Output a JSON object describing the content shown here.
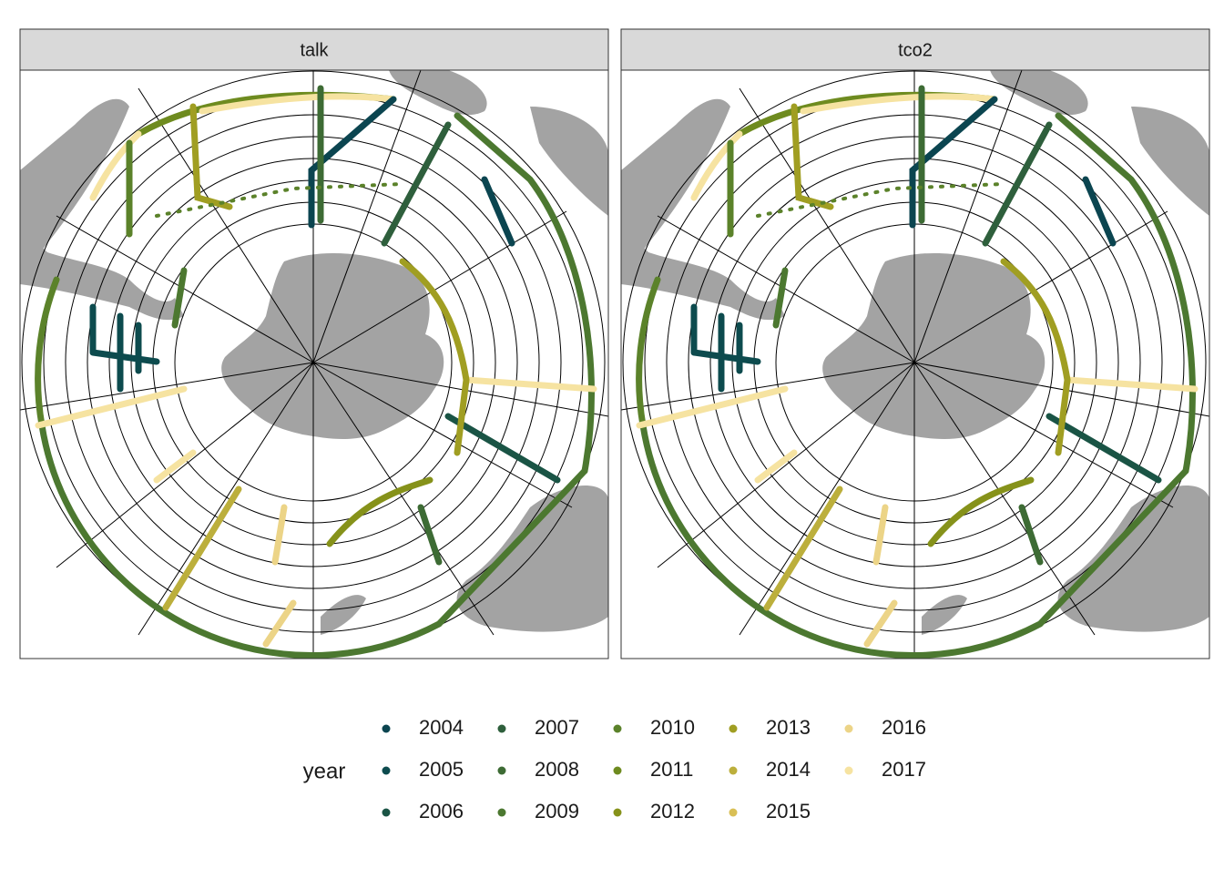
{
  "panels": [
    {
      "title": "talk"
    },
    {
      "title": "tco2"
    }
  ],
  "legend": {
    "title": "year",
    "entries": [
      {
        "label": "2004",
        "color": "#0b4550"
      },
      {
        "label": "2005",
        "color": "#0d4b4e"
      },
      {
        "label": "2006",
        "color": "#1a5445"
      },
      {
        "label": "2007",
        "color": "#2e5f3c"
      },
      {
        "label": "2008",
        "color": "#3d6b34"
      },
      {
        "label": "2009",
        "color": "#4c7830"
      },
      {
        "label": "2010",
        "color": "#5b822a"
      },
      {
        "label": "2011",
        "color": "#6e8b1f"
      },
      {
        "label": "2012",
        "color": "#86921a"
      },
      {
        "label": "2013",
        "color": "#a09e22"
      },
      {
        "label": "2014",
        "color": "#bcaf3c"
      },
      {
        "label": "2015",
        "color": "#d9bf55"
      },
      {
        "label": "2016",
        "color": "#ecd487"
      },
      {
        "label": "2017",
        "color": "#f6e3a1"
      }
    ]
  }
}
